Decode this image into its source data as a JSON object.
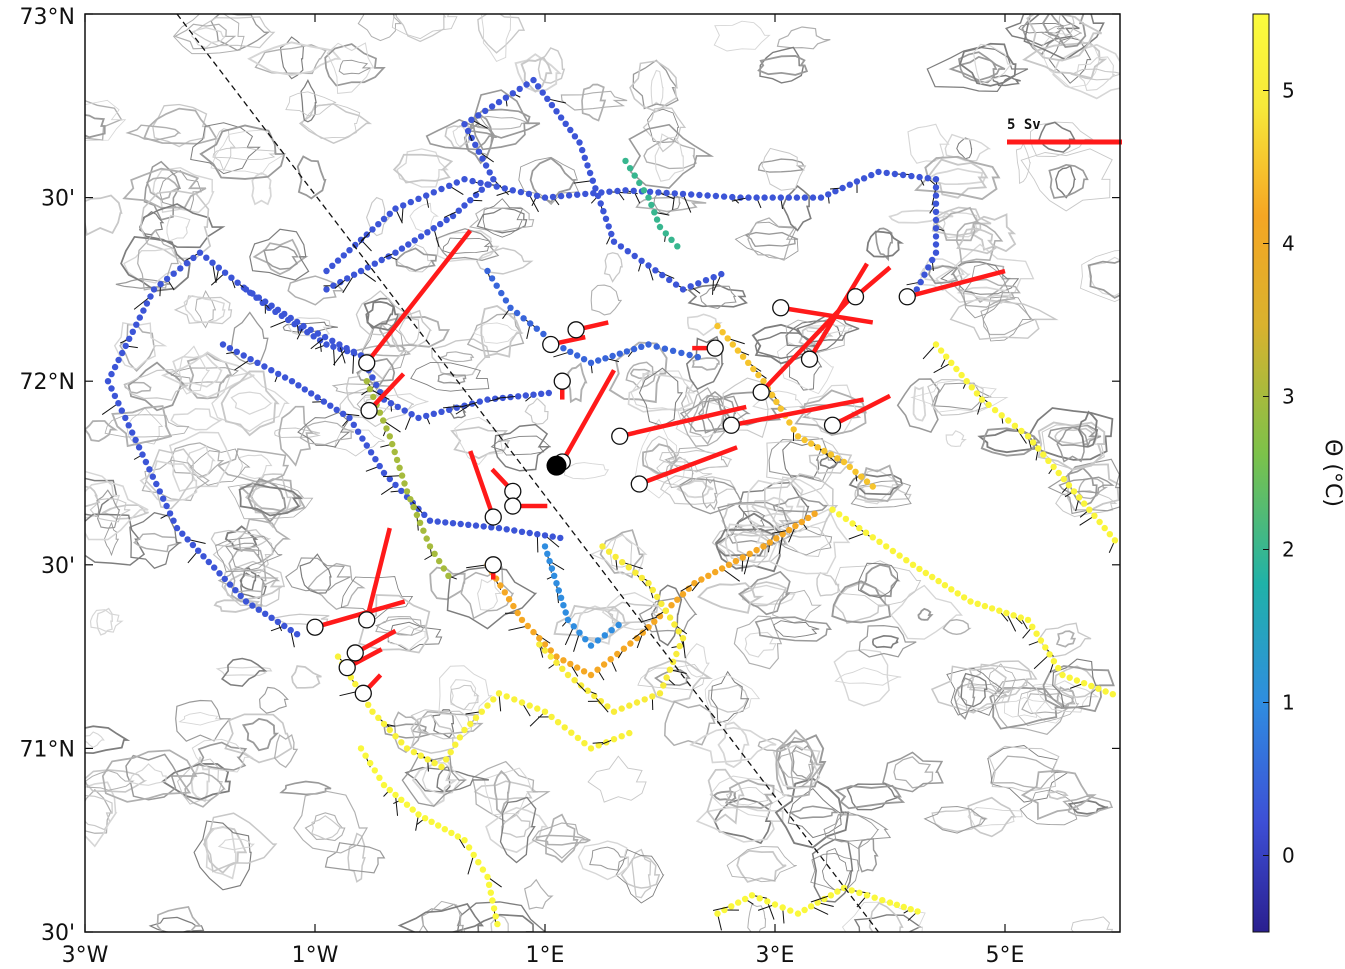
{
  "chart_data": {
    "type": "scatter",
    "title": "",
    "xaxis": {
      "range_lon": [
        -3,
        6
      ],
      "ticks": [
        {
          "lon": -3,
          "label": "3°W"
        },
        {
          "lon": -1,
          "label": "1°W"
        },
        {
          "lon": 1,
          "label": "1°E"
        },
        {
          "lon": 3,
          "label": "3°E"
        },
        {
          "lon": 5,
          "label": "5°E"
        }
      ]
    },
    "yaxis": {
      "range_lat": [
        70.5,
        73.0
      ],
      "ticks": [
        {
          "lat": 73.0,
          "label": "73°N"
        },
        {
          "lat": 72.5,
          "label": "30'"
        },
        {
          "lat": 72.0,
          "label": "72°N"
        },
        {
          "lat": 71.5,
          "label": "30'"
        },
        {
          "lat": 71.0,
          "label": "71°N"
        },
        {
          "lat": 70.5,
          "label": "30'"
        }
      ]
    },
    "colorbar": {
      "label": "Θ (°C)",
      "range": [
        -0.5,
        5.5
      ],
      "ticks": [
        0,
        1,
        2,
        3,
        4,
        5
      ],
      "colormap": [
        "#2a1f8f",
        "#3d4fd6",
        "#2f8de0",
        "#20b2a8",
        "#7cc24a",
        "#d9b22e",
        "#f5a623",
        "#f7e93a",
        "#fbfb3c"
      ]
    },
    "transport_scale": {
      "label": "5 Sv",
      "sv": 5,
      "color": "#ff1a1a"
    },
    "section_line": [
      [
        -2.2,
        73.0
      ],
      [
        3.9,
        70.5
      ]
    ],
    "deep_station": [
      1.1,
      71.77
    ],
    "transport_vectors": [
      {
        "lon": -0.55,
        "lat": 72.05,
        "dx": 0.9,
        "dy": 0.36
      },
      {
        "lon": -0.53,
        "lat": 71.92,
        "dx": 0.3,
        "dy": 0.1
      },
      {
        "lon": 1.05,
        "lat": 72.1,
        "dx": 0.3,
        "dy": 0.02
      },
      {
        "lon": 1.27,
        "lat": 72.14,
        "dx": 0.28,
        "dy": 0.02
      },
      {
        "lon": 1.15,
        "lat": 72.0,
        "dx": 0.0,
        "dy": -0.05
      },
      {
        "lon": 0.72,
        "lat": 71.7,
        "dx": -0.18,
        "dy": 0.06
      },
      {
        "lon": 0.72,
        "lat": 71.66,
        "dx": 0.3,
        "dy": 0.0
      },
      {
        "lon": 0.55,
        "lat": 71.63,
        "dx": -0.2,
        "dy": 0.18
      },
      {
        "lon": 0.55,
        "lat": 71.5,
        "dx": 0.0,
        "dy": -0.04
      },
      {
        "lon": 1.15,
        "lat": 71.78,
        "dx": 0.45,
        "dy": 0.25
      },
      {
        "lon": 1.65,
        "lat": 71.85,
        "dx": 1.1,
        "dy": 0.08
      },
      {
        "lon": 1.82,
        "lat": 71.72,
        "dx": 0.85,
        "dy": 0.1
      },
      {
        "lon": 3.05,
        "lat": 72.2,
        "dx": 0.8,
        "dy": -0.04
      },
      {
        "lon": 2.48,
        "lat": 72.09,
        "dx": -0.2,
        "dy": 0.0
      },
      {
        "lon": 2.88,
        "lat": 71.97,
        "dx": 0.85,
        "dy": 0.28
      },
      {
        "lon": 2.62,
        "lat": 71.88,
        "dx": 1.15,
        "dy": 0.07
      },
      {
        "lon": 3.3,
        "lat": 72.06,
        "dx": 0.5,
        "dy": 0.26
      },
      {
        "lon": 3.7,
        "lat": 72.23,
        "dx": 0.3,
        "dy": 0.08
      },
      {
        "lon": 4.15,
        "lat": 72.23,
        "dx": 0.85,
        "dy": 0.07
      },
      {
        "lon": 3.5,
        "lat": 71.88,
        "dx": 0.5,
        "dy": 0.08
      },
      {
        "lon": -1.0,
        "lat": 71.33,
        "dx": 0.78,
        "dy": 0.07
      },
      {
        "lon": -0.55,
        "lat": 71.35,
        "dx": 0.2,
        "dy": 0.25
      },
      {
        "lon": -0.65,
        "lat": 71.26,
        "dx": 0.35,
        "dy": 0.06
      },
      {
        "lon": -0.72,
        "lat": 71.22,
        "dx": 0.3,
        "dy": 0.05
      },
      {
        "lon": -0.58,
        "lat": 71.15,
        "dx": 0.15,
        "dy": 0.05
      }
    ],
    "tracks": [
      {
        "temp": 0.3,
        "points": [
          [
            -0.6,
            72.07
          ],
          [
            -0.9,
            72.1
          ],
          [
            -1.4,
            72.2
          ],
          [
            -2.0,
            72.35
          ],
          [
            -2.4,
            72.25
          ],
          [
            -2.8,
            72.0
          ],
          [
            -2.5,
            71.8
          ],
          [
            -2.2,
            71.6
          ],
          [
            -1.6,
            71.4
          ],
          [
            -1.1,
            71.3
          ]
        ]
      },
      {
        "temp": 0.3,
        "points": [
          [
            -1.6,
            72.25
          ],
          [
            -1.1,
            72.15
          ],
          [
            -0.6,
            72.07
          ],
          [
            -0.4,
            71.95
          ],
          [
            -0.1,
            71.9
          ],
          [
            0.5,
            71.95
          ],
          [
            1.1,
            71.97
          ]
        ]
      },
      {
        "temp": 0.3,
        "points": [
          [
            -0.9,
            72.25
          ],
          [
            -0.3,
            72.35
          ],
          [
            0.2,
            72.45
          ],
          [
            0.55,
            72.55
          ],
          [
            0.3,
            72.7
          ],
          [
            0.9,
            72.82
          ],
          [
            1.3,
            72.65
          ],
          [
            1.6,
            72.38
          ],
          [
            2.2,
            72.25
          ],
          [
            2.6,
            72.3
          ]
        ]
      },
      {
        "temp": 0.3,
        "points": [
          [
            -0.9,
            72.3
          ],
          [
            -0.3,
            72.47
          ],
          [
            0.3,
            72.55
          ],
          [
            1.0,
            72.5
          ],
          [
            1.7,
            72.52
          ],
          [
            2.7,
            72.5
          ],
          [
            3.4,
            72.5
          ],
          [
            3.9,
            72.57
          ],
          [
            4.4,
            72.55
          ],
          [
            4.4,
            72.35
          ],
          [
            4.2,
            72.23
          ]
        ]
      },
      {
        "temp": 0.3,
        "points": [
          [
            -1.8,
            72.1
          ],
          [
            -1.2,
            72.0
          ],
          [
            -0.7,
            71.9
          ],
          [
            -0.4,
            71.75
          ],
          [
            0.0,
            71.62
          ],
          [
            0.6,
            71.6
          ],
          [
            1.2,
            71.57
          ]
        ]
      },
      {
        "temp": 0.5,
        "points": [
          [
            0.5,
            72.3
          ],
          [
            0.7,
            72.2
          ],
          [
            1.1,
            72.1
          ],
          [
            1.4,
            72.05
          ],
          [
            1.9,
            72.1
          ],
          [
            2.4,
            72.06
          ]
        ]
      },
      {
        "temp": 2.0,
        "points": [
          [
            1.7,
            72.6
          ],
          [
            1.9,
            72.5
          ],
          [
            2.0,
            72.42
          ],
          [
            2.2,
            72.35
          ]
        ]
      },
      {
        "temp": 3.0,
        "points": [
          [
            -0.55,
            72.0
          ],
          [
            -0.35,
            71.85
          ],
          [
            -0.2,
            71.7
          ],
          [
            0.0,
            71.55
          ],
          [
            0.2,
            71.45
          ]
        ]
      },
      {
        "temp": 4.2,
        "points": [
          [
            0.5,
            71.5
          ],
          [
            0.8,
            71.35
          ],
          [
            1.1,
            71.25
          ],
          [
            1.4,
            71.2
          ],
          [
            1.8,
            71.3
          ],
          [
            2.3,
            71.45
          ],
          [
            2.9,
            71.55
          ],
          [
            3.4,
            71.65
          ]
        ]
      },
      {
        "temp": 4.5,
        "points": [
          [
            2.5,
            72.15
          ],
          [
            2.9,
            72.0
          ],
          [
            3.2,
            71.85
          ],
          [
            3.6,
            71.78
          ],
          [
            3.9,
            71.7
          ]
        ]
      },
      {
        "temp": 5.3,
        "points": [
          [
            3.5,
            71.65
          ],
          [
            4.2,
            71.5
          ],
          [
            4.7,
            71.4
          ],
          [
            5.2,
            71.35
          ],
          [
            5.5,
            71.2
          ],
          [
            6.0,
            71.14
          ]
        ]
      },
      {
        "temp": 5.3,
        "points": [
          [
            4.4,
            72.1
          ],
          [
            4.8,
            71.95
          ],
          [
            5.2,
            71.85
          ],
          [
            5.6,
            71.7
          ],
          [
            6.0,
            71.55
          ]
        ]
      },
      {
        "temp": 5.2,
        "points": [
          [
            -0.8,
            71.25
          ],
          [
            -0.5,
            71.1
          ],
          [
            -0.2,
            71.0
          ],
          [
            0.1,
            70.95
          ],
          [
            0.3,
            71.05
          ],
          [
            0.6,
            71.15
          ],
          [
            1.0,
            71.1
          ],
          [
            1.4,
            71.0
          ],
          [
            1.8,
            71.05
          ]
        ]
      },
      {
        "temp": 5.4,
        "points": [
          [
            -0.6,
            71.0
          ],
          [
            -0.4,
            70.9
          ],
          [
            -0.1,
            70.82
          ],
          [
            0.3,
            70.75
          ],
          [
            0.5,
            70.65
          ],
          [
            0.6,
            70.5
          ]
        ]
      },
      {
        "temp": 5.4,
        "points": [
          [
            2.5,
            70.55
          ],
          [
            2.8,
            70.6
          ],
          [
            3.2,
            70.55
          ],
          [
            3.6,
            70.62
          ],
          [
            4.0,
            70.58
          ],
          [
            4.3,
            70.55
          ]
        ]
      },
      {
        "temp": 5.0,
        "points": [
          [
            1.5,
            71.55
          ],
          [
            1.9,
            71.45
          ],
          [
            2.2,
            71.3
          ],
          [
            2.0,
            71.15
          ],
          [
            1.6,
            71.1
          ],
          [
            1.2,
            71.2
          ],
          [
            0.9,
            71.3
          ]
        ]
      },
      {
        "temp": 1.0,
        "points": [
          [
            1.0,
            71.55
          ],
          [
            1.2,
            71.35
          ],
          [
            1.4,
            71.28
          ],
          [
            1.7,
            71.35
          ]
        ]
      }
    ]
  }
}
